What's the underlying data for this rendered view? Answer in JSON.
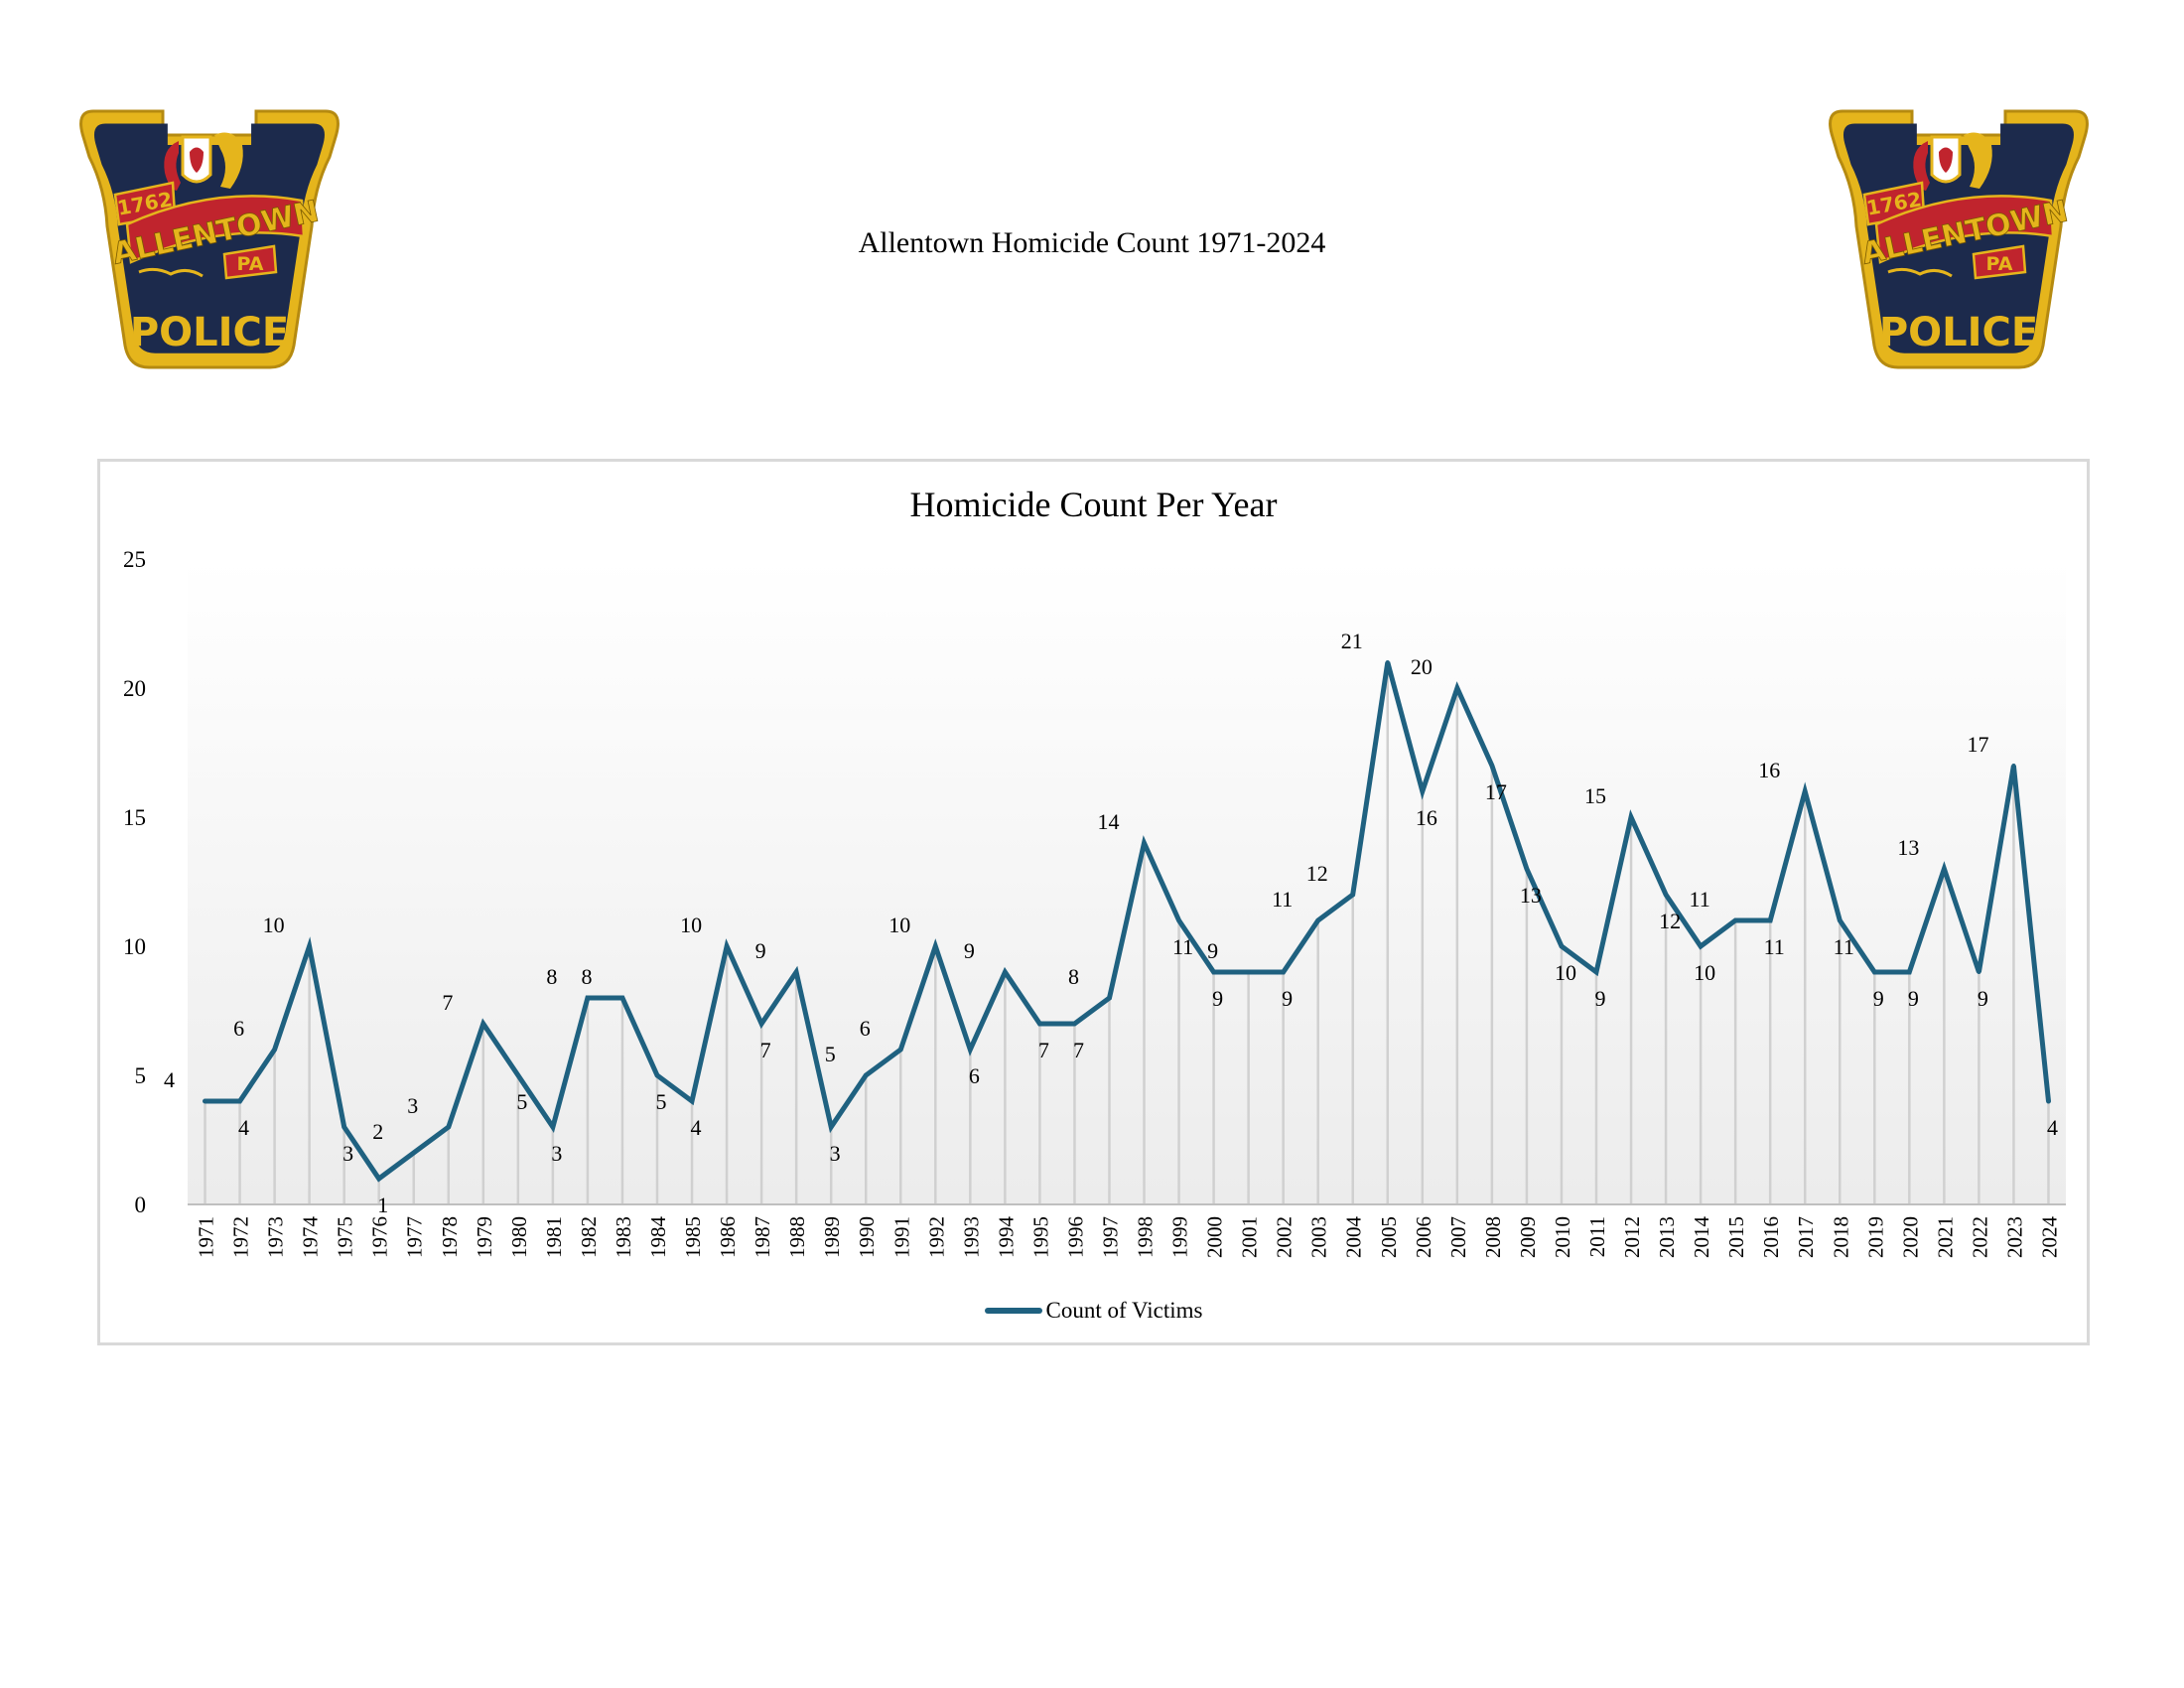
{
  "document": {
    "title": "Allentown Homicide Count 1971-2024"
  },
  "badge": {
    "year": "1762",
    "city": "ALLENTOWN",
    "state": "PA",
    "agency": "POLICE"
  },
  "colors": {
    "series_line": "#1f6180",
    "drop_lines": "#d0d0d0",
    "frame": "#d9d9d9",
    "badge_navy": "#1c2a4c",
    "badge_gold": "#e5b51c",
    "badge_red": "#c0242d"
  },
  "chart_data": {
    "type": "line",
    "title": "Homicide Count Per Year",
    "xlabel": "",
    "ylabel": "",
    "ylim": [
      0,
      25
    ],
    "yticks": [
      0,
      5,
      10,
      15,
      20,
      25
    ],
    "grid": false,
    "drop_lines": true,
    "background": "vertical gradient, white to light gray",
    "legend_position": "bottom",
    "categories": [
      "1971",
      "1972",
      "1973",
      "1974",
      "1975",
      "1976",
      "1977",
      "1978",
      "1979",
      "1980",
      "1981",
      "1982",
      "1983",
      "1984",
      "1985",
      "1986",
      "1987",
      "1988",
      "1989",
      "1990",
      "1991",
      "1992",
      "1993",
      "1994",
      "1995",
      "1996",
      "1997",
      "1998",
      "1999",
      "2000",
      "2001",
      "2002",
      "2003",
      "2004",
      "2005",
      "2006",
      "2007",
      "2008",
      "2009",
      "2010",
      "2011",
      "2012",
      "2013",
      "2014",
      "2015",
      "2016",
      "2017",
      "2018",
      "2019",
      "2020",
      "2021",
      "2022",
      "2023",
      "2024"
    ],
    "series": [
      {
        "name": "Count of Victims",
        "color": "#1f6180",
        "values": [
          4,
          4,
          6,
          10,
          3,
          1,
          2,
          3,
          7,
          5,
          3,
          8,
          8,
          5,
          4,
          10,
          7,
          9,
          3,
          5,
          6,
          10,
          6,
          9,
          7,
          7,
          8,
          14,
          11,
          9,
          9,
          9,
          11,
          12,
          21,
          16,
          20,
          17,
          13,
          10,
          9,
          15,
          12,
          10,
          11,
          11,
          16,
          11,
          9,
          9,
          13,
          9,
          17,
          4
        ]
      }
    ]
  }
}
